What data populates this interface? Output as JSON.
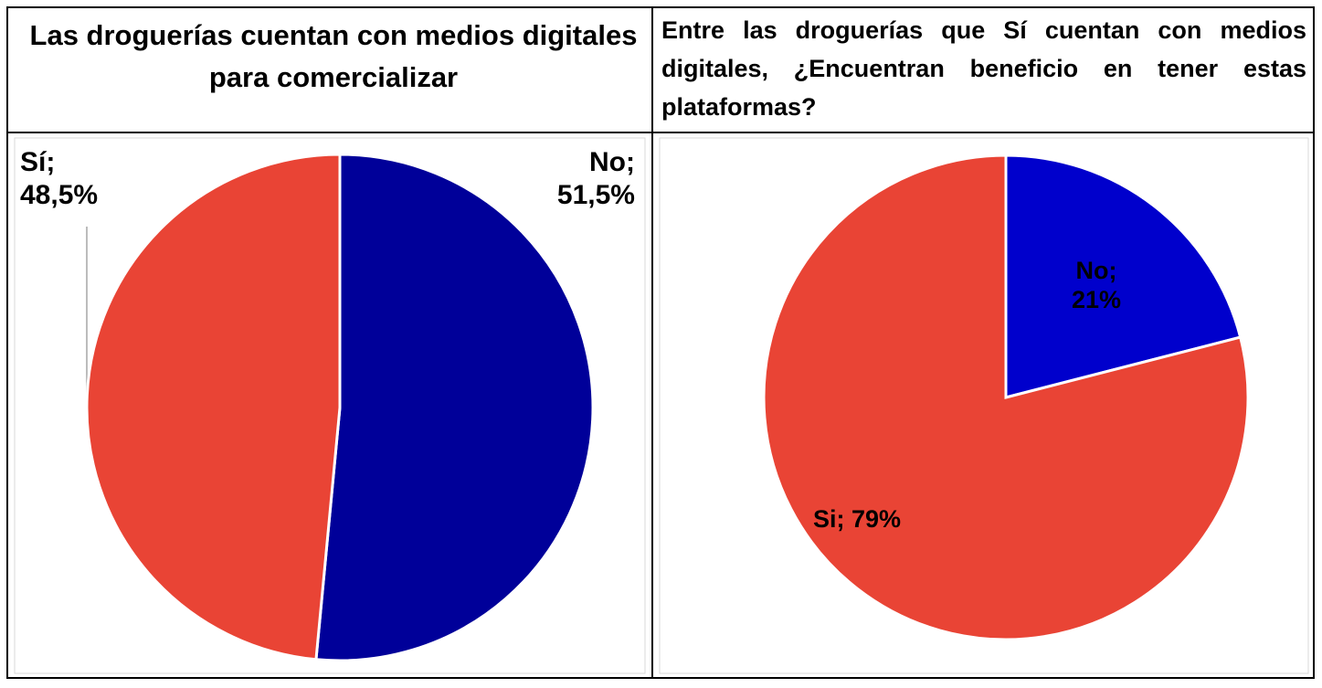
{
  "chart_data": [
    {
      "type": "pie",
      "title": "Las droguerías cuentan con medios digitales para comercializar",
      "categories": [
        "No",
        "Sí"
      ],
      "values": [
        51.5,
        48.5
      ],
      "value_labels": [
        "No; 51,5%",
        "Sí; 48,5%"
      ],
      "colors": [
        "#000099",
        "#e94435"
      ]
    },
    {
      "type": "pie",
      "title": "Entre las droguerías que Sí cuentan con medios digitales, ¿Encuentran beneficio en tener estas plataformas?",
      "categories": [
        "No",
        "Si"
      ],
      "values": [
        21,
        79
      ],
      "value_labels": [
        "No; 21%",
        "Si; 79%"
      ],
      "colors": [
        "#0000cc",
        "#e94435"
      ]
    }
  ]
}
